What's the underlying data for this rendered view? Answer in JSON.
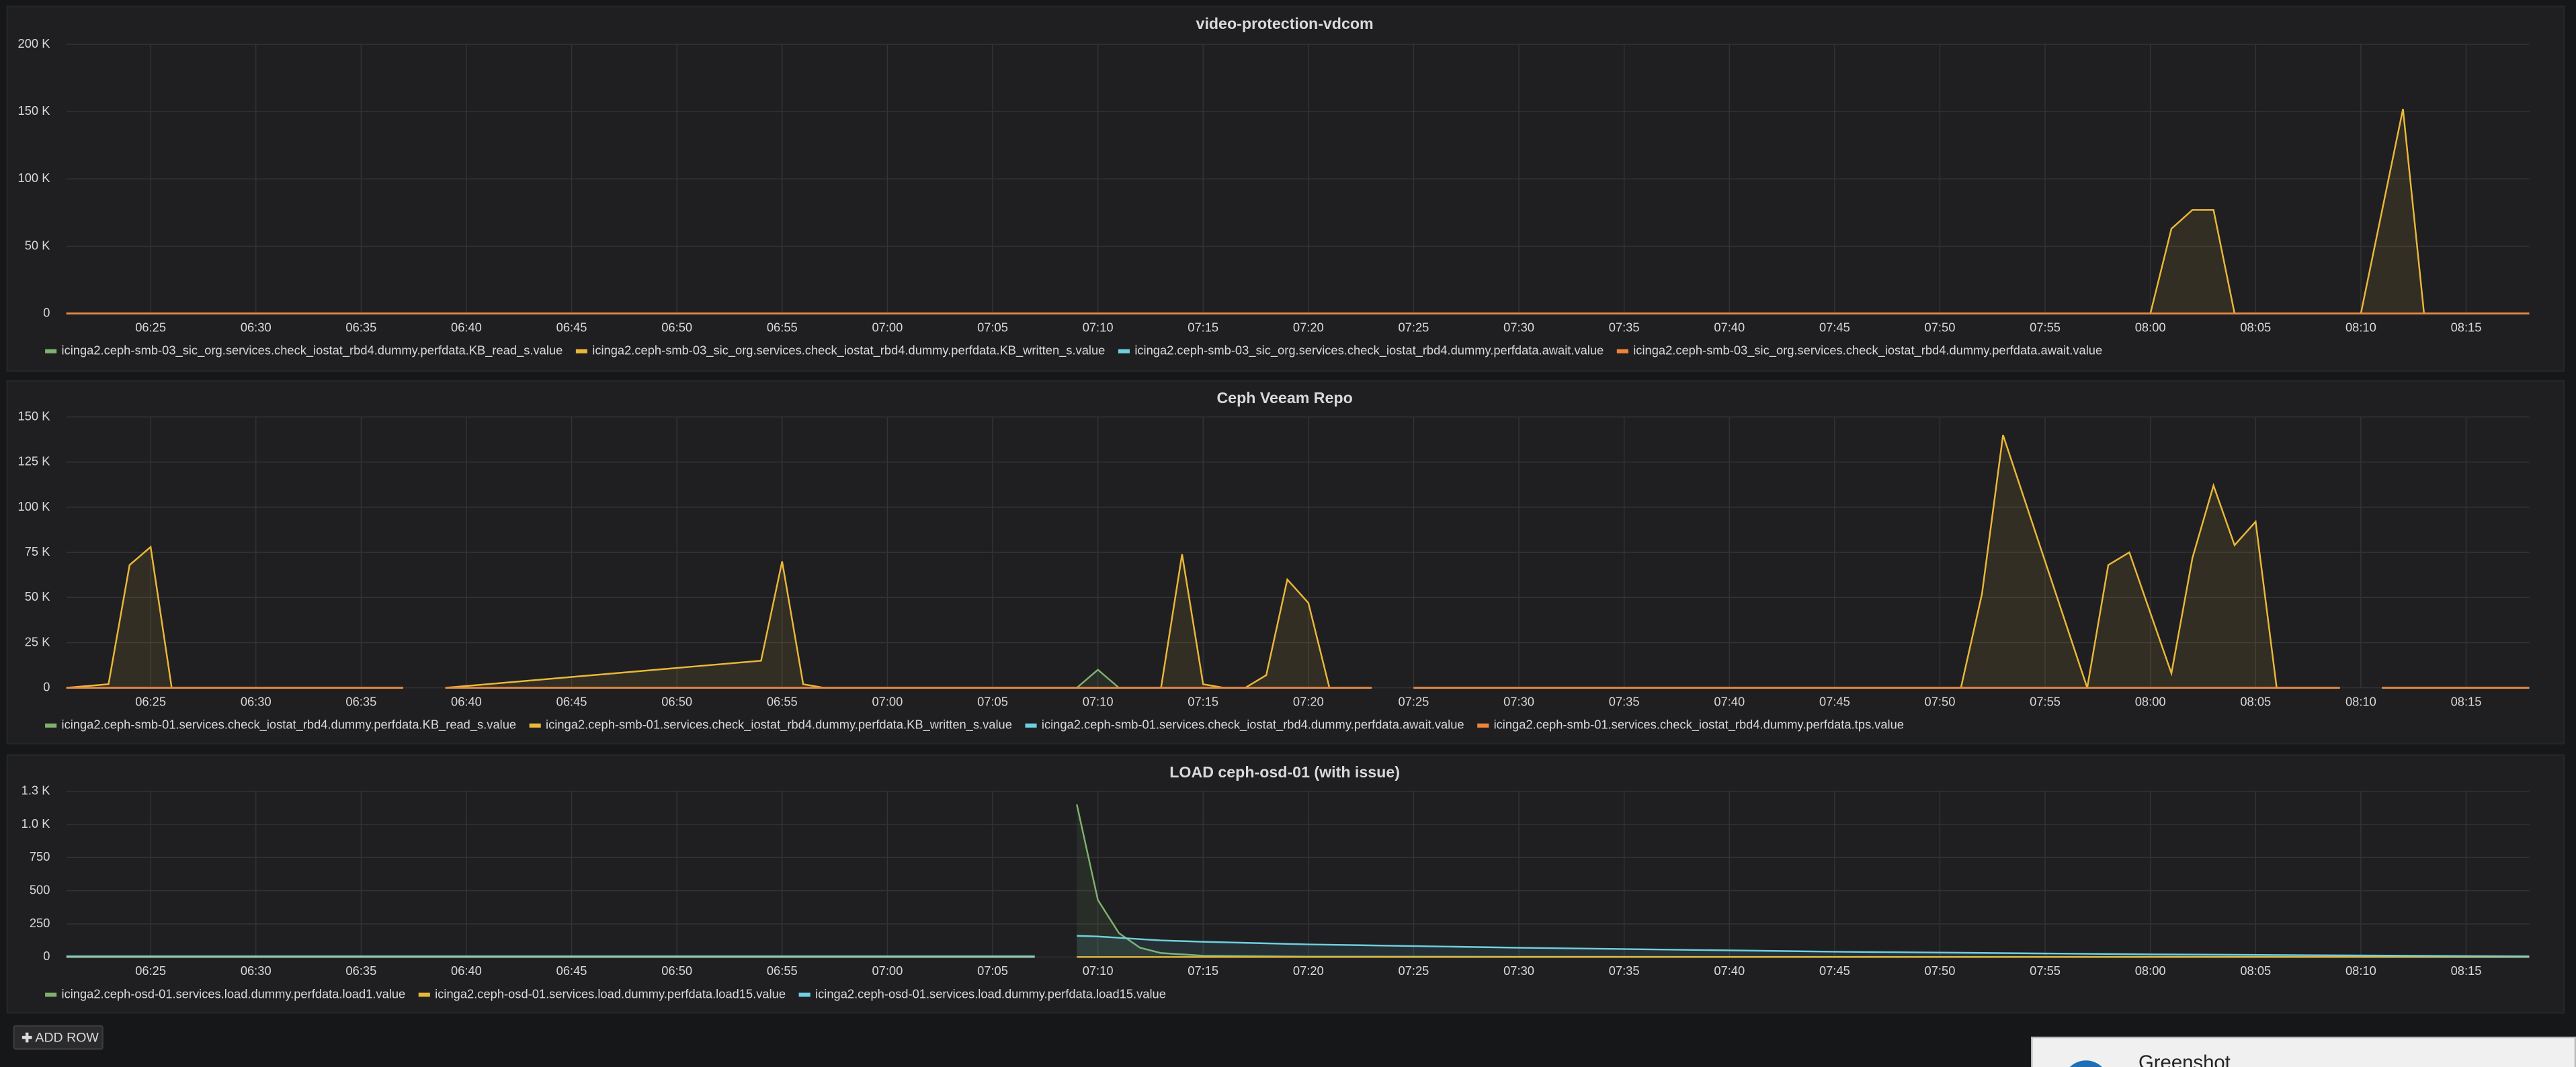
{
  "chart_data": [
    {
      "type": "line",
      "title": "video-protection-vdcom",
      "fill": true,
      "grid": true,
      "x": [
        "06:21",
        "08:00",
        "08:01",
        "08:02",
        "08:03",
        "08:04",
        "08:10",
        "08:12",
        "08:13",
        "08:18"
      ],
      "xlim": [
        "06:21",
        "08:18"
      ],
      "xticks": [
        "06:25",
        "06:30",
        "06:35",
        "06:40",
        "06:45",
        "06:50",
        "06:55",
        "07:00",
        "07:05",
        "07:10",
        "07:15",
        "07:20",
        "07:25",
        "07:30",
        "07:35",
        "07:40",
        "07:45",
        "07:50",
        "07:55",
        "08:00",
        "08:05",
        "08:10",
        "08:15"
      ],
      "ylim": [
        0,
        200000
      ],
      "yticks": [
        0,
        {
          "value": 50000,
          "label": "50 K"
        },
        {
          "value": 100000,
          "label": "100 K"
        },
        {
          "value": 150000,
          "label": "150 K"
        },
        {
          "value": 200000,
          "label": "200 K"
        }
      ],
      "series": [
        {
          "name": "icinga2.ceph-smb-03_sic_org.services.check_iostat_rbd4.dummy.perfdata.KB_read_s.value",
          "color": "#7eb26d",
          "values": [
            0,
            0,
            0,
            0,
            0,
            0,
            0,
            0,
            0,
            0
          ]
        },
        {
          "name": "icinga2.ceph-smb-03_sic_org.services.check_iostat_rbd4.dummy.perfdata.KB_written_s.value",
          "color": "#eab839",
          "values": [
            0,
            0,
            63000,
            77000,
            77000,
            0,
            0,
            152000,
            0,
            0
          ]
        },
        {
          "name": "icinga2.ceph-smb-03_sic_org.services.check_iostat_rbd4.dummy.perfdata.await.value",
          "color": "#6ed0e0",
          "values": [
            0,
            0,
            0,
            0,
            0,
            0,
            0,
            0,
            0,
            0
          ]
        },
        {
          "name": "icinga2.ceph-smb-03_sic_org.services.check_iostat_rbd4.dummy.perfdata.await.value",
          "color": "#ef843c",
          "values": [
            0,
            0,
            0,
            0,
            0,
            0,
            0,
            0,
            0,
            0
          ]
        }
      ]
    },
    {
      "type": "line",
      "title": "Ceph Veeam Repo",
      "fill": true,
      "grid": true,
      "x": [
        "06:21",
        "06:23",
        "06:24",
        "06:25",
        "06:26",
        "06:37",
        "06:38",
        "06:39",
        "06:54",
        "06:55",
        "06:56",
        "06:57",
        "07:09",
        "07:10",
        "07:11",
        "07:13",
        "07:14",
        "07:15",
        "07:16",
        "07:17",
        "07:18",
        "07:19",
        "07:20",
        "07:21",
        "07:23",
        "07:24",
        "07:25",
        "07:51",
        "07:52",
        "07:53",
        "07:57",
        "07:58",
        "07:59",
        "08:01",
        "08:02",
        "08:03",
        "08:04",
        "08:05",
        "08:06",
        "08:09",
        "08:10",
        "08:11",
        "08:18"
      ],
      "xlim": [
        "06:21",
        "08:18"
      ],
      "xticks": [
        "06:25",
        "06:30",
        "06:35",
        "06:40",
        "06:45",
        "06:50",
        "06:55",
        "07:00",
        "07:05",
        "07:10",
        "07:15",
        "07:20",
        "07:25",
        "07:30",
        "07:35",
        "07:40",
        "07:45",
        "07:50",
        "07:55",
        "08:00",
        "08:05",
        "08:10",
        "08:15"
      ],
      "ylim": [
        0,
        150000
      ],
      "yticks": [
        0,
        {
          "value": 25000,
          "label": "25 K"
        },
        {
          "value": 50000,
          "label": "50 K"
        },
        {
          "value": 75000,
          "label": "75 K"
        },
        {
          "value": 100000,
          "label": "100 K"
        },
        {
          "value": 125000,
          "label": "125 K"
        },
        {
          "value": 150000,
          "label": "150 K"
        }
      ],
      "series": [
        {
          "name": "icinga2.ceph-smb-01.services.check_iostat_rbd4.dummy.perfdata.KB_read_s.value",
          "color": "#7eb26d",
          "values": [
            0,
            0,
            0,
            0,
            0,
            0,
            null,
            0,
            0,
            0,
            0,
            0,
            0,
            10000,
            0,
            0,
            0,
            0,
            0,
            0,
            0,
            0,
            0,
            0,
            0,
            null,
            0,
            0,
            0,
            0,
            0,
            0,
            0,
            0,
            0,
            0,
            0,
            0,
            0,
            0,
            null,
            0,
            0
          ]
        },
        {
          "name": "icinga2.ceph-smb-01.services.check_iostat_rbd4.dummy.perfdata.KB_written_s.value",
          "color": "#eab839",
          "values": [
            0,
            2000,
            68000,
            78000,
            0,
            0,
            null,
            0,
            15000,
            70000,
            2000,
            0,
            0,
            0,
            0,
            0,
            74000,
            2000,
            0,
            0,
            7000,
            60000,
            47000,
            0,
            0,
            null,
            0,
            0,
            52000,
            140000,
            0,
            68000,
            75000,
            8000,
            72000,
            112000,
            79000,
            92000,
            0,
            0,
            null,
            0,
            0
          ]
        },
        {
          "name": "icinga2.ceph-smb-01.services.check_iostat_rbd4.dummy.perfdata.await.value",
          "color": "#6ed0e0",
          "values": [
            0,
            0,
            0,
            0,
            0,
            0,
            null,
            0,
            0,
            0,
            0,
            0,
            0,
            0,
            0,
            0,
            0,
            0,
            0,
            0,
            0,
            0,
            0,
            0,
            0,
            null,
            0,
            0,
            0,
            0,
            0,
            0,
            0,
            0,
            0,
            0,
            0,
            0,
            0,
            0,
            null,
            0,
            0
          ]
        },
        {
          "name": "icinga2.ceph-smb-01.services.check_iostat_rbd4.dummy.perfdata.tps.value",
          "color": "#ef843c",
          "values": [
            0,
            0,
            0,
            0,
            0,
            0,
            null,
            0,
            0,
            0,
            0,
            0,
            0,
            0,
            0,
            0,
            0,
            0,
            0,
            0,
            0,
            0,
            0,
            0,
            0,
            null,
            0,
            0,
            0,
            0,
            0,
            0,
            0,
            0,
            0,
            0,
            0,
            0,
            0,
            0,
            null,
            0,
            0
          ]
        }
      ]
    },
    {
      "type": "line",
      "title": "LOAD ceph-osd-01 (with issue)",
      "fill": true,
      "grid": true,
      "x": [
        "06:21",
        "07:07",
        "07:08",
        "07:09",
        "07:10",
        "07:11",
        "07:12",
        "07:13",
        "07:15",
        "07:20",
        "07:30",
        "07:45",
        "08:00",
        "08:18"
      ],
      "xlim": [
        "06:21",
        "08:18"
      ],
      "xticks": [
        "06:25",
        "06:30",
        "06:35",
        "06:40",
        "06:45",
        "06:50",
        "06:55",
        "07:00",
        "07:05",
        "07:10",
        "07:15",
        "07:20",
        "07:25",
        "07:30",
        "07:35",
        "07:40",
        "07:45",
        "07:50",
        "07:55",
        "08:00",
        "08:05",
        "08:10",
        "08:15"
      ],
      "ylim": [
        0,
        1250
      ],
      "yticks": [
        0,
        250,
        500,
        750,
        {
          "value": 1000,
          "label": "1.0 K"
        },
        {
          "value": 1250,
          "label": "1.3 K"
        }
      ],
      "series": [
        {
          "name": "icinga2.ceph-osd-01.services.load.dummy.perfdata.load1.value",
          "color": "#7eb26d",
          "values": [
            5,
            5,
            null,
            1150,
            430,
            180,
            70,
            30,
            10,
            3,
            2,
            1,
            1,
            1
          ]
        },
        {
          "name": "icinga2.ceph-osd-01.services.load.dummy.perfdata.load15.value",
          "color": "#eab839",
          "values": [
            0,
            0,
            null,
            0,
            0,
            0,
            0,
            0,
            0,
            0,
            0,
            0,
            0,
            0
          ]
        },
        {
          "name": "icinga2.ceph-osd-01.services.load.dummy.perfdata.load15.value",
          "color": "#6ed0e0",
          "values": [
            5,
            5,
            null,
            160,
            155,
            145,
            135,
            125,
            115,
            95,
            70,
            40,
            20,
            5
          ]
        }
      ]
    }
  ],
  "add_row": "ADD ROW",
  "notification": "Greenshot"
}
